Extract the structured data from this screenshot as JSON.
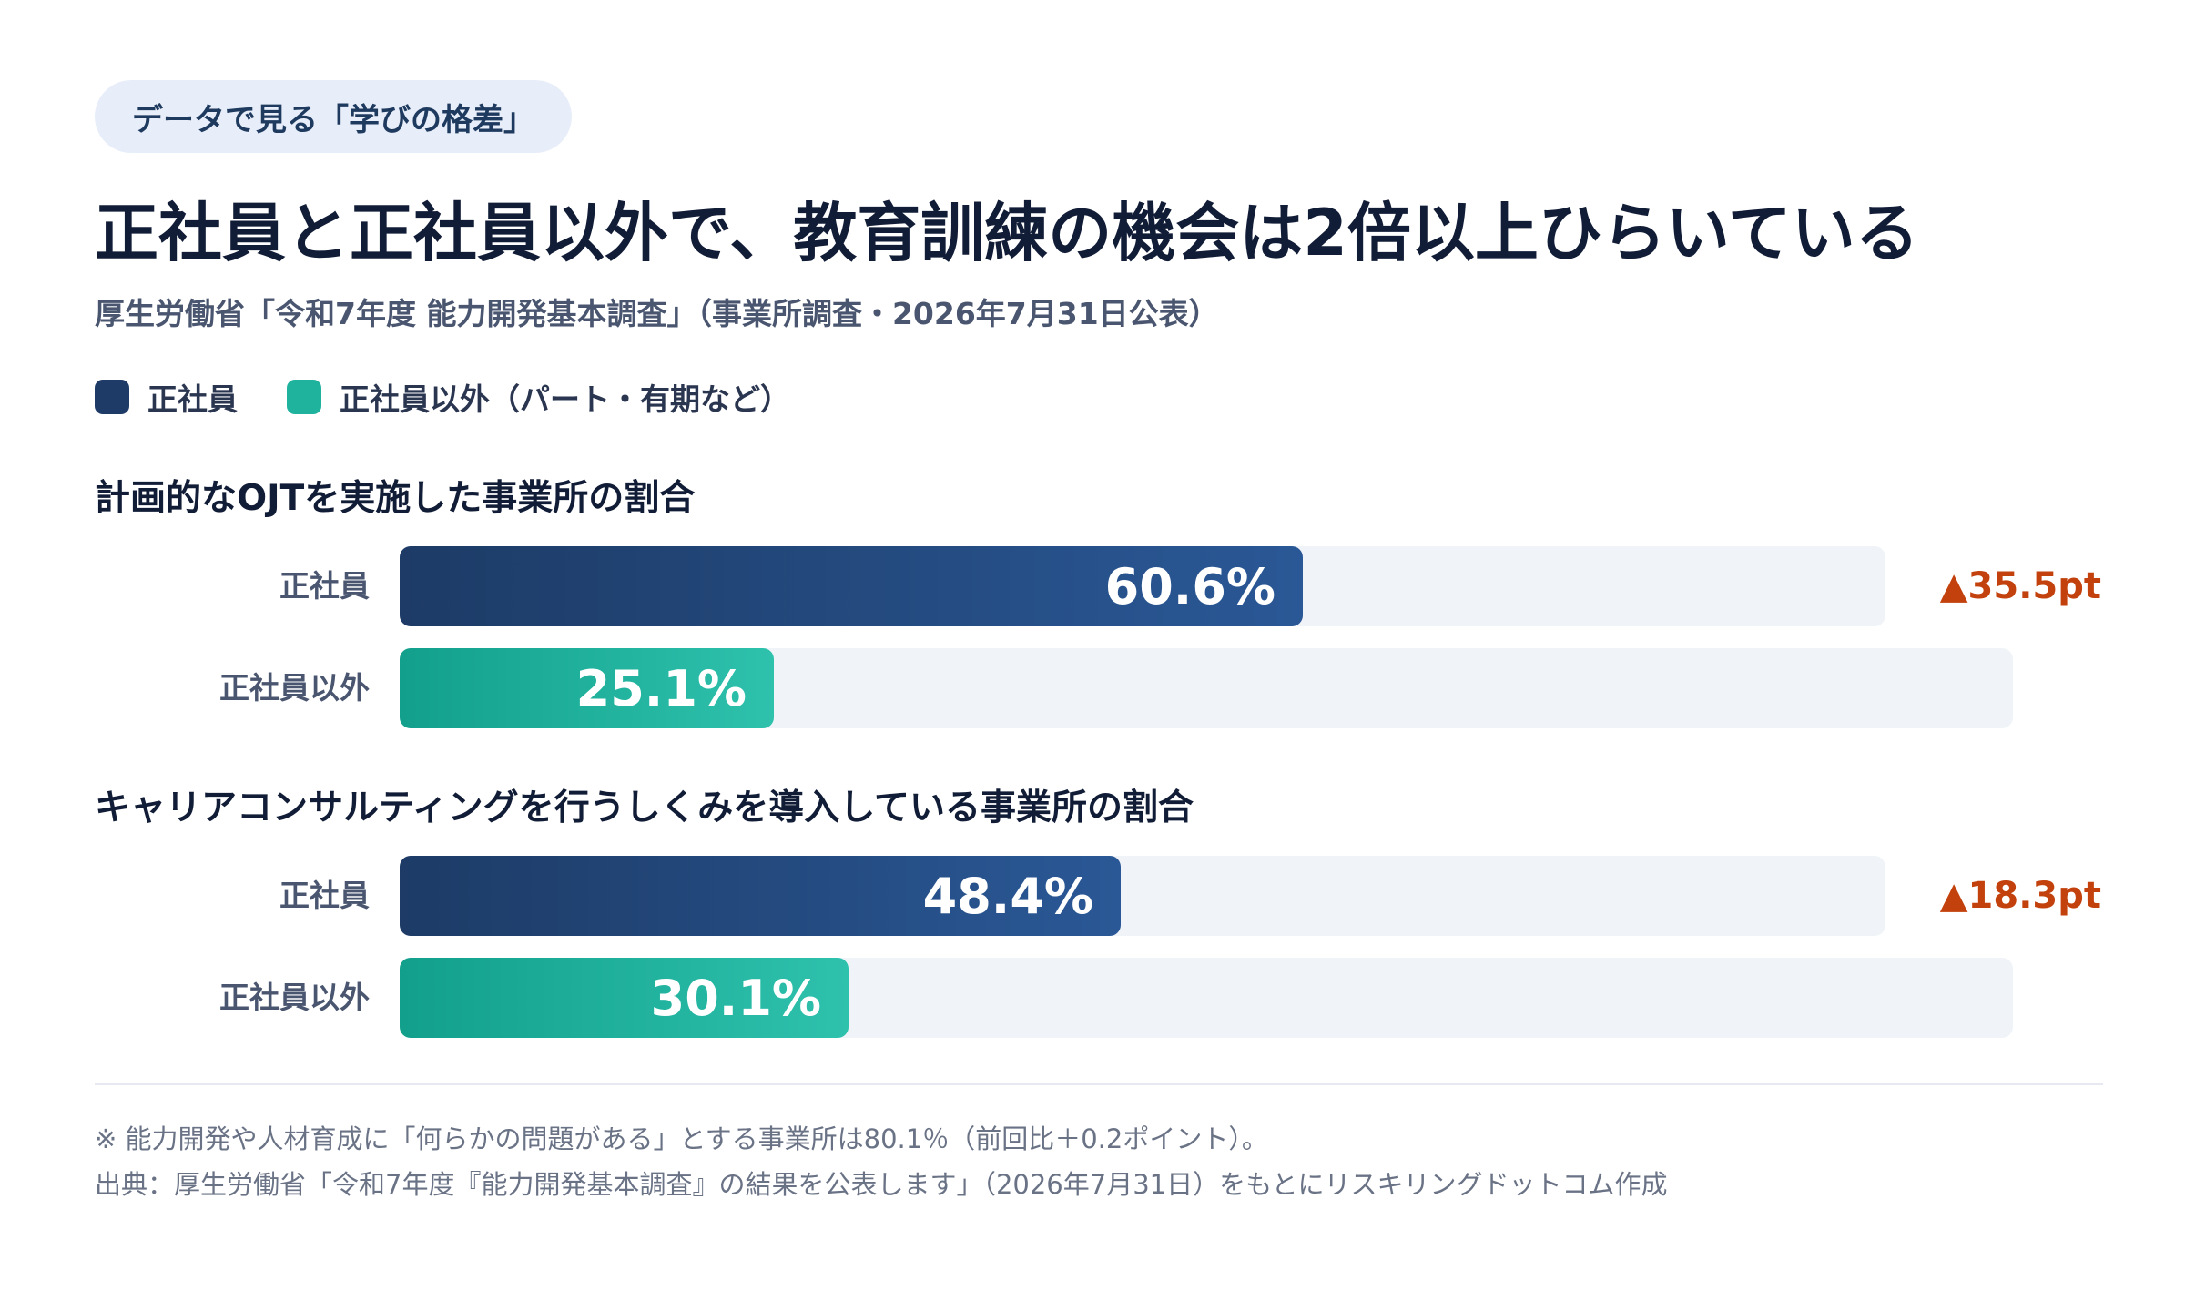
{
  "tag": "データで見る「学びの格差」",
  "title": "正社員と正社員以外で、教育訓練の機会は2倍以上ひらいている",
  "subtitle": "厚生労働省「令和7年度 能力開発基本調査」（事業所調査・2026年7月31日公表）",
  "legend": {
    "regular": "正社員",
    "nonregular": "正社員以外（パート・有期など）"
  },
  "colors": {
    "regular": "#1d3b66",
    "nonregular": "#1fb39e",
    "diff": "#c2410c",
    "track": "#f0f3f8"
  },
  "chart_data": [
    {
      "type": "bar",
      "title": "計画的なOJTを実施した事業所の割合",
      "categories": [
        "正社員",
        "正社員以外"
      ],
      "values": [
        60.6,
        25.1
      ],
      "value_labels": [
        "60.6%",
        "25.1%"
      ],
      "difference": "▲35.5pt",
      "xlim": [
        0,
        100
      ],
      "orientation": "horizontal"
    },
    {
      "type": "bar",
      "title": "キャリアコンサルティングを行うしくみを導入している事業所の割合",
      "categories": [
        "正社員",
        "正社員以外"
      ],
      "values": [
        48.4,
        30.1
      ],
      "value_labels": [
        "48.4%",
        "30.1%"
      ],
      "difference": "▲18.3pt",
      "xlim": [
        0,
        100
      ],
      "orientation": "horizontal"
    }
  ],
  "footnotes": {
    "note": "※ 能力開発や人材育成に「何らかの問題がある」とする事業所は80.1％（前回比＋0.2ポイント）。",
    "source": "出典：厚生労働省「令和7年度『能力開発基本調査』の結果を公表します」（2026年7月31日）をもとにリスキリングドットコム作成"
  }
}
